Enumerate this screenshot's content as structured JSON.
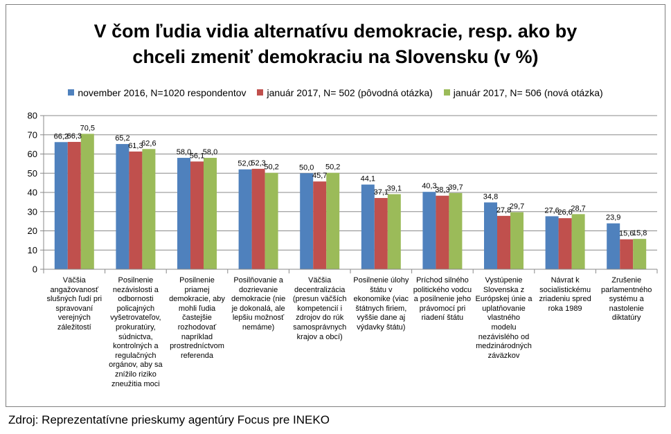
{
  "chart_data": {
    "type": "bar",
    "title": "V čom ľudia vidia alternatívu demokracie, resp. ako by chceli zmeniť demokraciu na Slovensku (v %)",
    "title_lines": [
      "V čom ľudia vidia alternatívu demokracie, resp. ako by",
      "chceli zmeniť demokraciu na Slovensku (v %)"
    ],
    "ylim": [
      0,
      80
    ],
    "yticks": [
      0,
      10,
      20,
      30,
      40,
      50,
      60,
      70,
      80
    ],
    "grid": true,
    "legend_position": "top",
    "categories": [
      "Väčšia angažovanosť slušných ľudí pri spravovaní verejných záležitostí",
      "Posilnenie nezávislosti a odbornosti policajných vyšetrovateľov, prokuratúry, súdnictva, kontrolných a regulačných orgánov, aby sa znížilo riziko zneužitia moci",
      "Posilnenie priamej demokracie, aby mohli ľudia častejšie rozhodovať napríklad prostredníctvom referenda",
      "Posilňovanie a dozrievanie demokracie (nie je dokonalá, ale lepšiu možnosť nemáme)",
      "Väčšia decentralizácia (presun väčších kompetencií i zdrojov do rúk samosprávnych krajov a obcí)",
      "Posilnenie úlohy štátu v ekonomike (viac štátnych firiem, vyššie dane aj výdavky štátu)",
      "Príchod silného politického vodcu a posilnenie jeho právomocí pri riadení štátu",
      "Vystúpenie Slovenska z Európskej únie a uplatňovanie vlastného modelu nezávislého od medzinárodných záväzkov",
      "Návrat k socialistickému zriadeniu spred roka 1989",
      "Zrušenie parlamentného systému a nastolenie diktatúry"
    ],
    "category_lines": [
      [
        "Väčšia",
        "angažovanosť",
        "slušných ľudí pri",
        "spravovaní",
        "verejných",
        "záležitostí"
      ],
      [
        "Posilnenie",
        "nezávislosti a",
        "odbornosti",
        "policajných",
        "vyšetrovateľov,",
        "prokuratúry,",
        "súdnictva,",
        "kontrolných a",
        "regulačných",
        "orgánov, aby sa",
        "znížilo riziko",
        "zneužitia moci"
      ],
      [
        "Posilnenie",
        "priamej",
        "demokracie, aby",
        "mohli ľudia",
        "častejšie",
        "rozhodovať",
        "napríklad",
        "prostredníctvom",
        "referenda"
      ],
      [
        "Posilňovanie a",
        "dozrievanie",
        "demokracie (nie",
        "je dokonalá, ale",
        "lepšiu možnosť",
        "nemáme)"
      ],
      [
        "Väčšia",
        "decentralizácia",
        "(presun väčších",
        "kompetencií i",
        "zdrojov do rúk",
        "samosprávnych",
        "krajov a obcí)"
      ],
      [
        "Posilnenie úlohy",
        "štátu v",
        "ekonomike (viac",
        "štátnych firiem,",
        "vyššie dane aj",
        "výdavky štátu)"
      ],
      [
        "Príchod silného",
        "politického vodcu",
        "a posilnenie jeho",
        "právomocí pri",
        "riadení štátu"
      ],
      [
        "Vystúpenie",
        "Slovenska z",
        "Európskej únie a",
        "uplatňovanie",
        "vlastného modelu",
        "nezávislého od",
        "medzinárodných",
        "záväzkov"
      ],
      [
        "Návrat k",
        "socialistickému",
        "zriadeniu spred",
        "roka 1989"
      ],
      [
        "Zrušenie",
        "parlamentného",
        "systému a",
        "nastolenie",
        "diktatúry"
      ]
    ],
    "series": [
      {
        "name": "november 2016, N=1020 respondentov",
        "color": "#4f81bd",
        "values": [
          66.2,
          65.2,
          58.0,
          52.0,
          50.0,
          44.1,
          40.3,
          34.8,
          27.6,
          23.9
        ],
        "labels": [
          "66,2",
          "65,2",
          "58,0",
          "52,0",
          "50,0",
          "44,1",
          "40,3",
          "34,8",
          "27,6",
          "23,9"
        ]
      },
      {
        "name": "január 2017, N= 502 (pôvodná otázka)",
        "color": "#c0504d",
        "values": [
          66.3,
          61.3,
          56.1,
          52.3,
          45.7,
          37.1,
          38.3,
          27.8,
          26.6,
          15.6
        ],
        "labels": [
          "66,3",
          "61,3",
          "56,1",
          "52,3",
          "45,7",
          "37,1",
          "38,3",
          "27,8",
          "26,6",
          "15,6"
        ]
      },
      {
        "name": "január 2017, N= 506 (nová otázka)",
        "color": "#9bbb59",
        "values": [
          70.5,
          62.6,
          58.0,
          50.2,
          50.2,
          39.1,
          39.7,
          29.7,
          28.7,
          15.8
        ],
        "labels": [
          "70,5",
          "62,6",
          "58,0",
          "50,2",
          "50,2",
          "39,1",
          "39,7",
          "29,7",
          "28,7",
          "15,8"
        ]
      }
    ]
  },
  "source_note": "Zdroj: Reprezentatívne prieskumy agentúry Focus pre INEKO"
}
